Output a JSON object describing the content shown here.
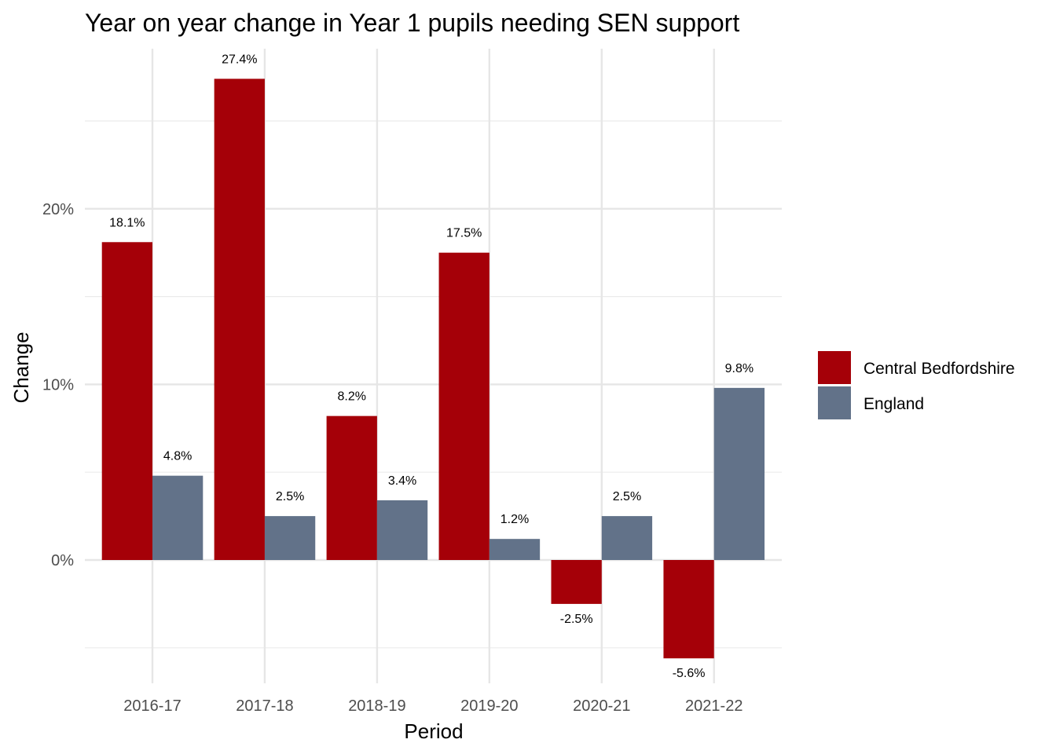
{
  "chart_data": {
    "type": "bar",
    "title": "Year on year change in Year 1 pupils needing SEN support",
    "xlabel": "Period",
    "ylabel": "Change",
    "categories": [
      "2016-17",
      "2017-18",
      "2018-19",
      "2019-20",
      "2020-21",
      "2021-22"
    ],
    "series": [
      {
        "name": "Central Bedfordshire",
        "color": "#a50008",
        "values": [
          18.1,
          27.4,
          8.2,
          17.5,
          -2.5,
          -5.6
        ],
        "labels": [
          "18.1%",
          "27.4%",
          "8.2%",
          "17.5%",
          "-2.5%",
          "-5.6%"
        ]
      },
      {
        "name": "England",
        "color": "#627289",
        "values": [
          4.8,
          2.5,
          3.4,
          1.2,
          2.5,
          9.8
        ],
        "labels": [
          "4.8%",
          "2.5%",
          "3.4%",
          "1.2%",
          "2.5%",
          "9.8%"
        ]
      }
    ],
    "ylim": [
      -7,
      29
    ],
    "yticks": [
      0,
      10,
      20
    ],
    "ytick_labels": [
      "0%",
      "10%",
      "20%"
    ],
    "grid": true,
    "legend": "right"
  }
}
